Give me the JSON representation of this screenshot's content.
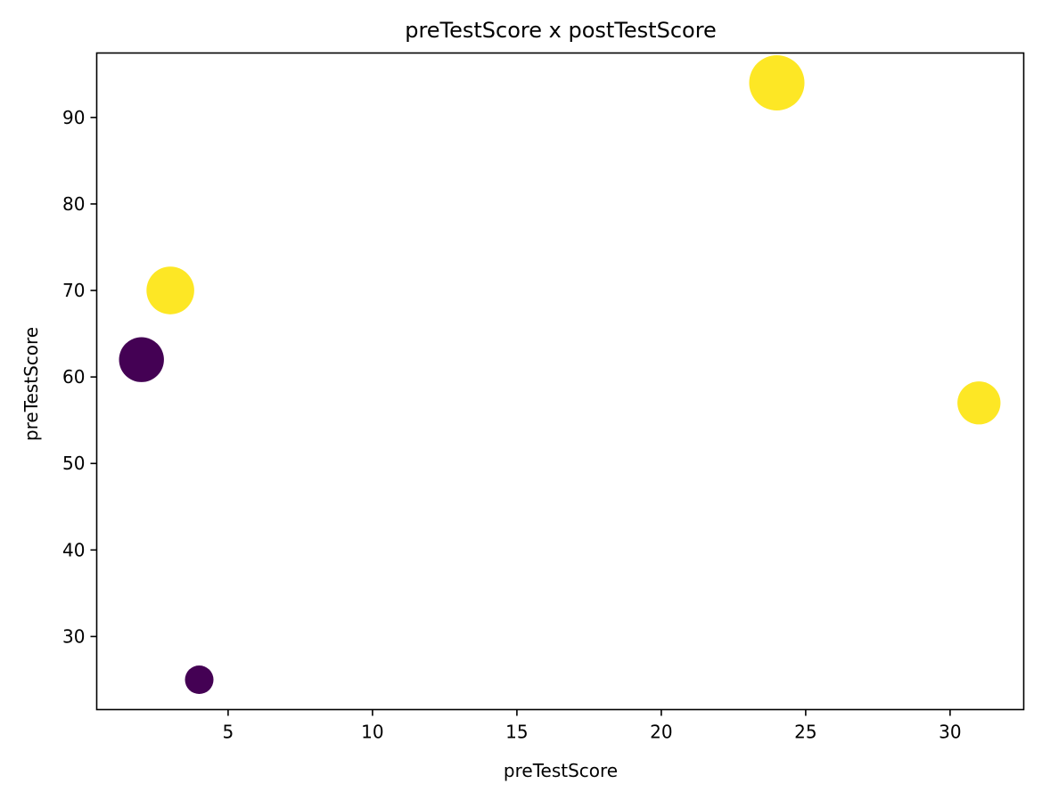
{
  "chart_data": {
    "type": "scatter",
    "title": "preTestScore x postTestScore",
    "xlabel": "preTestScore",
    "ylabel": "preTestScore",
    "xlim": [
      0.45,
      32.55
    ],
    "ylim": [
      21.55,
      97.45
    ],
    "xticks": [
      5,
      10,
      15,
      20,
      25,
      30
    ],
    "yticks": [
      30,
      40,
      50,
      60,
      70,
      80,
      90
    ],
    "grid": false,
    "points": [
      {
        "x": 4,
        "y": 25,
        "size": 25,
        "color": "#440154"
      },
      {
        "x": 24,
        "y": 94,
        "size": 94,
        "color": "#fde725"
      },
      {
        "x": 31,
        "y": 57,
        "size": 57,
        "color": "#fde725"
      },
      {
        "x": 2,
        "y": 62,
        "size": 62,
        "color": "#440154"
      },
      {
        "x": 3,
        "y": 70,
        "size": 70,
        "color": "#fde725"
      }
    ]
  }
}
